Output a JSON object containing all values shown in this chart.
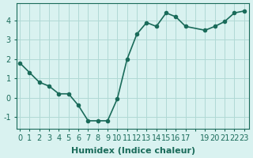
{
  "x": [
    0,
    1,
    2,
    3,
    4,
    5,
    6,
    7,
    8,
    9,
    10,
    11,
    12,
    13,
    14,
    15,
    16,
    17,
    19,
    20,
    21,
    22,
    23
  ],
  "y": [
    1.8,
    1.3,
    0.8,
    0.6,
    0.2,
    0.2,
    -0.4,
    -1.2,
    -1.2,
    -1.2,
    -0.05,
    2.0,
    3.3,
    3.9,
    3.7,
    4.4,
    4.2,
    3.7,
    3.5,
    3.7,
    3.95,
    4.4,
    4.5
  ],
  "xticks_all": [
    0,
    1,
    2,
    3,
    4,
    5,
    6,
    7,
    8,
    9,
    10,
    11,
    12,
    13,
    14,
    15,
    16,
    17,
    18,
    19,
    20,
    21,
    22,
    23
  ],
  "xtick_labels": [
    "0",
    "1",
    "2",
    "3",
    "4",
    "5",
    "6",
    "7",
    "8",
    "9",
    "10",
    "11",
    "12",
    "13",
    "14",
    "15",
    "16",
    "17",
    "",
    "19",
    "20",
    "21",
    "22",
    "23"
  ],
  "yticks": [
    -1,
    0,
    1,
    2,
    3,
    4
  ],
  "ylim": [
    -1.6,
    4.9
  ],
  "xlim": [
    -0.3,
    23.5
  ],
  "xlabel": "Humidex (Indice chaleur)",
  "line_color": "#1a6b5a",
  "marker": "o",
  "marker_size": 3,
  "line_width": 1.2,
  "bg_color": "#d9f2f0",
  "grid_color": "#b0d9d5",
  "tick_label_fontsize": 7,
  "xlabel_fontsize": 8
}
